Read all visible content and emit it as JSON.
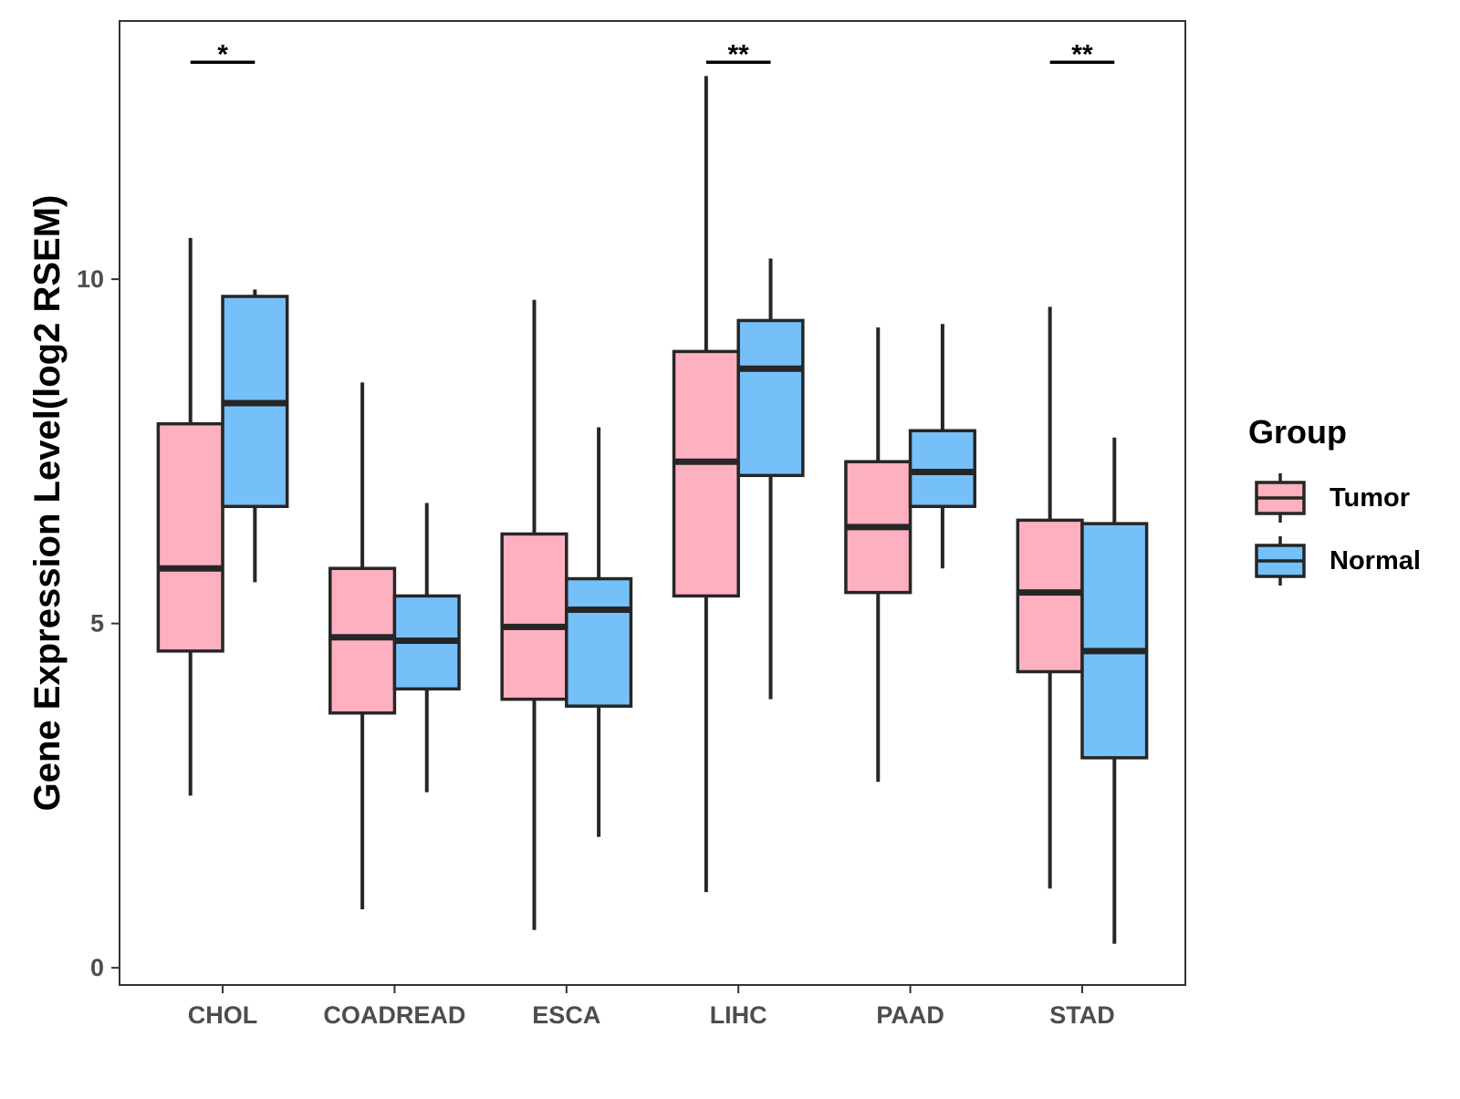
{
  "chart_data": {
    "type": "boxplot",
    "title": "",
    "xlabel": "",
    "ylabel": "Gene Expression Level(log2 RSEM)",
    "ylim": [
      -0.25,
      13.75
    ],
    "yticks": [
      0,
      5,
      10
    ],
    "ytick_labels": [
      "0",
      "5",
      "10"
    ],
    "categories": [
      "CHOL",
      "COADREAD",
      "ESCA",
      "LIHC",
      "PAAD",
      "STAD"
    ],
    "grid": false,
    "legend": {
      "title": "Group",
      "placement": "right"
    },
    "series": [
      {
        "name": "Tumor",
        "color": "#FDB0C0",
        "boxes": [
          {
            "min": 2.5,
            "q1": 4.6,
            "median": 5.8,
            "q3": 7.9,
            "max": 10.6
          },
          {
            "min": 0.85,
            "q1": 3.7,
            "median": 4.8,
            "q3": 5.8,
            "max": 8.5
          },
          {
            "min": 0.55,
            "q1": 3.9,
            "median": 4.95,
            "q3": 6.3,
            "max": 9.7
          },
          {
            "min": 1.1,
            "q1": 5.4,
            "median": 7.35,
            "q3": 8.95,
            "max": 12.95
          },
          {
            "min": 2.7,
            "q1": 5.45,
            "median": 6.4,
            "q3": 7.35,
            "max": 9.3
          },
          {
            "min": 1.15,
            "q1": 4.3,
            "median": 5.45,
            "q3": 6.5,
            "max": 9.6
          }
        ]
      },
      {
        "name": "Normal",
        "color": "#75C0F8",
        "boxes": [
          {
            "min": 5.6,
            "q1": 6.7,
            "median": 8.2,
            "q3": 9.75,
            "max": 9.85
          },
          {
            "min": 2.55,
            "q1": 4.05,
            "median": 4.75,
            "q3": 5.4,
            "max": 6.75
          },
          {
            "min": 1.9,
            "q1": 3.8,
            "median": 5.2,
            "q3": 5.65,
            "max": 7.85
          },
          {
            "min": 3.9,
            "q1": 7.15,
            "median": 8.7,
            "q3": 9.4,
            "max": 10.3
          },
          {
            "min": 5.8,
            "q1": 6.7,
            "median": 7.2,
            "q3": 7.8,
            "max": 9.35
          },
          {
            "min": 0.35,
            "q1": 3.05,
            "median": 4.6,
            "q3": 6.45,
            "max": 7.7
          }
        ]
      }
    ],
    "significance": [
      {
        "category": "CHOL",
        "label": "*",
        "y": 13.15
      },
      {
        "category": "LIHC",
        "label": "**",
        "y": 13.15
      },
      {
        "category": "STAD",
        "label": "**",
        "y": 13.15
      }
    ]
  }
}
